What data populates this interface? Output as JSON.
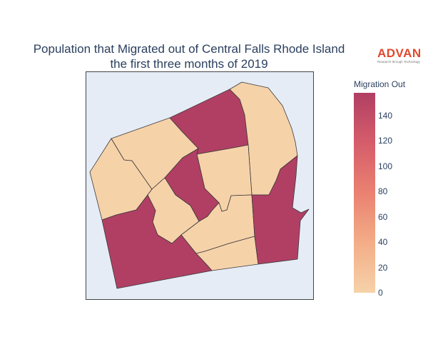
{
  "title": {
    "line1": "Population that Migrated out of Central Falls Rhode Island",
    "line2": "the first three months of 2019"
  },
  "logo": {
    "name": "ADVAN",
    "tagline": "Research through Technology",
    "color": "#e1492d"
  },
  "colorbar": {
    "title": "Migration Out",
    "range": [
      0,
      158
    ],
    "ticks": [
      "0",
      "20",
      "40",
      "60",
      "80",
      "100",
      "120",
      "140"
    ],
    "tick_values": [
      0,
      20,
      40,
      60,
      80,
      100,
      120,
      140
    ],
    "colors": [
      "#f6d2a9",
      "#f3ad87",
      "#ea8171",
      "#d55d6a",
      "#b13f64"
    ]
  },
  "chart_data": {
    "type": "choropleth",
    "value_field": "Migration Out",
    "regions": [
      {
        "id": "northwest-left",
        "value": 0
      },
      {
        "id": "northwest-right",
        "value": 0
      },
      {
        "id": "north-central",
        "value": 158
      },
      {
        "id": "northeast",
        "value": 0
      },
      {
        "id": "east-center",
        "value": 0
      },
      {
        "id": "central",
        "value": 158
      },
      {
        "id": "center-small",
        "value": 0
      },
      {
        "id": "south-center",
        "value": 0
      },
      {
        "id": "south-small",
        "value": 0
      },
      {
        "id": "southwest",
        "value": 158
      },
      {
        "id": "southeast",
        "value": 158
      }
    ]
  }
}
